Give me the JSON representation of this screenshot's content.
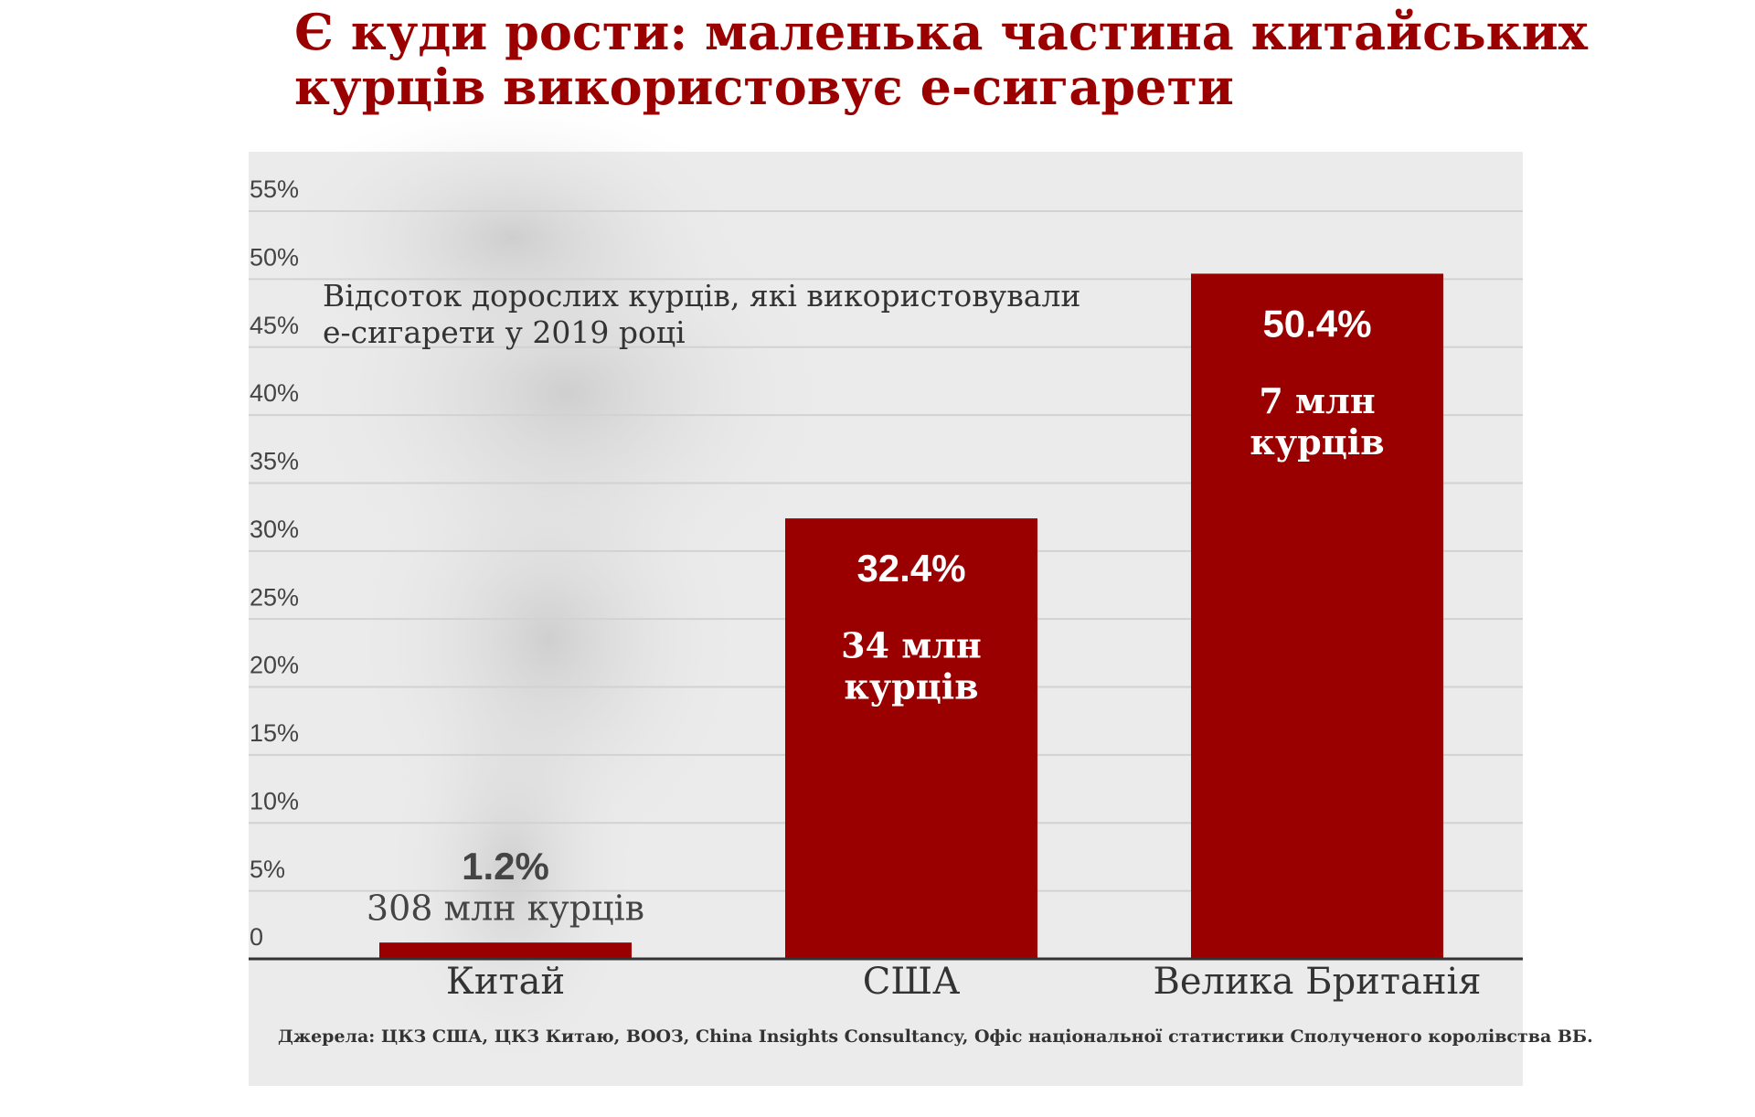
{
  "chart_data": {
    "type": "bar",
    "title": [
      "Є куди рости: маленька частина китайських",
      "курців використовує е-сигарети"
    ],
    "subtitle": [
      "Відсоток дорослих курців, які використовували",
      "е-сигарети у 2019 році"
    ],
    "categories": [
      "Китай",
      "США",
      "Велика Британія"
    ],
    "values": [
      1.2,
      32.4,
      50.4
    ],
    "value_labels": [
      "1.2%",
      "32.4%",
      "50.4%"
    ],
    "annotations": [
      [
        "308 млн курців"
      ],
      [
        "34 млн",
        "курців"
      ],
      [
        "7 млн",
        "курців"
      ]
    ],
    "color": "#9b0000",
    "ylim": [
      0,
      55
    ],
    "yticks": [
      0,
      {
        "value": 5,
        "label": "5%"
      },
      {
        "value": 10,
        "label": "10%"
      },
      {
        "value": 15,
        "label": "15%"
      },
      {
        "value": 20,
        "label": "20%"
      },
      {
        "value": 25,
        "label": "25%"
      },
      {
        "value": 30,
        "label": "30%"
      },
      {
        "value": 35,
        "label": "35%"
      },
      {
        "value": 40,
        "label": "40%"
      },
      {
        "value": 45,
        "label": "45%"
      },
      {
        "value": 50,
        "label": "50%"
      },
      {
        "value": 55,
        "label": "55%"
      }
    ],
    "grid": true,
    "source": "Джерела: ЦКЗ США, ЦКЗ Китаю, ВООЗ, China Insights Consultancy, Офіс національної статистики Сполученого королівства ВБ."
  }
}
